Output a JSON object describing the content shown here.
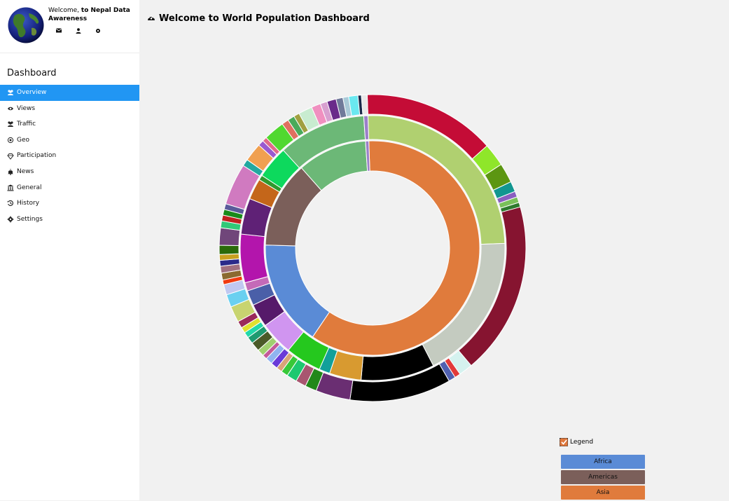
{
  "app": {
    "welcome_prefix": "Welcome,",
    "welcome_strong": "to Nepal Data Awareness"
  },
  "sidebar": {
    "title": "Dashboard",
    "items": [
      {
        "label": "Overview",
        "icon": "users-icon",
        "active": true
      },
      {
        "label": "Views",
        "icon": "eye-icon",
        "active": false
      },
      {
        "label": "Traffic",
        "icon": "users-icon",
        "active": false
      },
      {
        "label": "Geo",
        "icon": "bullseye-icon",
        "active": false
      },
      {
        "label": "Participation",
        "icon": "diamond-icon",
        "active": false
      },
      {
        "label": "News",
        "icon": "bell-icon",
        "active": false
      },
      {
        "label": "General",
        "icon": "bank-icon",
        "active": false
      },
      {
        "label": "History",
        "icon": "history-icon",
        "active": false
      },
      {
        "label": "Settings",
        "icon": "gear-icon",
        "active": false
      }
    ]
  },
  "header": {
    "title": "Welcome to World Population Dashboard",
    "icon": "dashboard-icon"
  },
  "legend": {
    "toggle_label": "Legend",
    "checked": true,
    "items": [
      {
        "label": "Africa",
        "color": "#5a8bd6"
      },
      {
        "label": "Americas",
        "color": "#7b5f5a"
      },
      {
        "label": "Asia",
        "color": "#e07b3c"
      }
    ]
  },
  "chart_data": {
    "type": "sunburst",
    "rings": [
      [
        {
          "label": "Asia",
          "value": 60,
          "color": "#e07b3c"
        },
        {
          "label": "Africa",
          "value": 16,
          "color": "#5a8bd6"
        },
        {
          "label": "Americas",
          "value": 13,
          "color": "#7b5f5a"
        },
        {
          "label": "",
          "value": 10.5,
          "color": "#6cb877"
        },
        {
          "label": "",
          "value": 0.5,
          "color": "#9b7fc9"
        }
      ],
      [
        {
          "value": 24.5,
          "color": "#b0d070"
        },
        {
          "value": 17.6,
          "color": "#c4cbc0"
        },
        {
          "value": 8.8,
          "color": "#000000"
        },
        {
          "value": 3.8,
          "color": "#d89a30"
        },
        {
          "value": 1.3,
          "color": "#12a09a"
        },
        {
          "value": 4.3,
          "color": "#25c81e"
        },
        {
          "value": 4.0,
          "color": "#d095f0"
        },
        {
          "value": 2.8,
          "color": "#561a6a"
        },
        {
          "value": 1.8,
          "color": "#4a5fa8"
        },
        {
          "value": 1.0,
          "color": "#c46ab8"
        },
        {
          "value": 5.8,
          "color": "#b315ac"
        },
        {
          "value": 4.3,
          "color": "#5f2176"
        },
        {
          "value": 2.5,
          "color": "#c4661a"
        },
        {
          "value": 0.6,
          "color": "#2e9a2e"
        },
        {
          "value": 3.9,
          "color": "#0dd95d"
        },
        {
          "value": 10.5,
          "color": "#6cb877"
        },
        {
          "value": 0.5,
          "color": "#9b7fc9"
        }
      ],
      [
        {
          "value": 11.5,
          "color": "#c40c36"
        },
        {
          "value": 2.0,
          "color": "#8fe62a"
        },
        {
          "value": 1.7,
          "color": "#5c9612"
        },
        {
          "value": 0.9,
          "color": "#129690"
        },
        {
          "value": 0.5,
          "color": "#8a5fc0"
        },
        {
          "value": 0.5,
          "color": "#7ac05a"
        },
        {
          "value": 0.4,
          "color": "#2e7a2e"
        },
        {
          "value": 15.0,
          "color": "#861430"
        },
        {
          "value": 1.2,
          "color": "#d5f2ef"
        },
        {
          "value": 0.5,
          "color": "#e23a3a"
        },
        {
          "value": 0.6,
          "color": "#5060b0"
        },
        {
          "value": 8.8,
          "color": "#000000"
        },
        {
          "value": 3.0,
          "color": "#6a2e72"
        },
        {
          "value": 1.0,
          "color": "#22881a"
        },
        {
          "value": 0.9,
          "color": "#a85670"
        },
        {
          "value": 0.9,
          "color": "#1ec870"
        },
        {
          "value": 0.6,
          "color": "#38c838"
        },
        {
          "value": 0.5,
          "color": "#d8a478"
        },
        {
          "value": 0.6,
          "color": "#6a3ad8"
        },
        {
          "value": 0.6,
          "color": "#90b4f0"
        },
        {
          "value": 0.4,
          "color": "#c45a9a"
        },
        {
          "value": 0.6,
          "color": "#a0d070"
        },
        {
          "value": 0.8,
          "color": "#4a5a28"
        },
        {
          "value": 0.6,
          "color": "#1e9a70"
        },
        {
          "value": 0.5,
          "color": "#22d8a8"
        },
        {
          "value": 0.5,
          "color": "#e0e030"
        },
        {
          "value": 0.6,
          "color": "#9a2a5a"
        },
        {
          "value": 1.4,
          "color": "#c8d470"
        },
        {
          "value": 1.1,
          "color": "#6ad0f0"
        },
        {
          "value": 0.9,
          "color": "#c0c8f0"
        },
        {
          "value": 0.4,
          "color": "#f03a10"
        },
        {
          "value": 0.6,
          "color": "#8a6a30"
        },
        {
          "value": 0.6,
          "color": "#a07080"
        },
        {
          "value": 0.5,
          "color": "#2a2a8a"
        },
        {
          "value": 0.5,
          "color": "#c8a020"
        },
        {
          "value": 0.8,
          "color": "#2a6a0a"
        },
        {
          "value": 1.5,
          "color": "#70467a"
        },
        {
          "value": 0.6,
          "color": "#30c878"
        },
        {
          "value": 0.5,
          "color": "#c02020"
        },
        {
          "value": 0.5,
          "color": "#1a8a1a"
        },
        {
          "value": 0.5,
          "color": "#5a5a9a"
        },
        {
          "value": 3.6,
          "color": "#d07ac0"
        },
        {
          "value": 0.6,
          "color": "#22a8a0"
        },
        {
          "value": 1.6,
          "color": "#f0a050"
        },
        {
          "value": 0.5,
          "color": "#9a5ad0"
        },
        {
          "value": 0.4,
          "color": "#e06a8a"
        },
        {
          "value": 1.8,
          "color": "#50d830"
        },
        {
          "value": 0.6,
          "color": "#e07060"
        },
        {
          "value": 0.6,
          "color": "#4aaa5a"
        },
        {
          "value": 0.5,
          "color": "#a0a040"
        },
        {
          "value": 1.2,
          "color": "#c8ecd0"
        },
        {
          "value": 0.8,
          "color": "#f090c0"
        },
        {
          "value": 0.6,
          "color": "#d8a0d0"
        },
        {
          "value": 0.8,
          "color": "#6a2a8a"
        },
        {
          "value": 0.6,
          "color": "#707a9a"
        },
        {
          "value": 0.5,
          "color": "#aacad8"
        },
        {
          "value": 0.8,
          "color": "#6ae8f0"
        },
        {
          "value": 0.3,
          "color": "#1a2a4a"
        },
        {
          "value": 0.5,
          "color": "#e8e8e8"
        }
      ]
    ]
  }
}
